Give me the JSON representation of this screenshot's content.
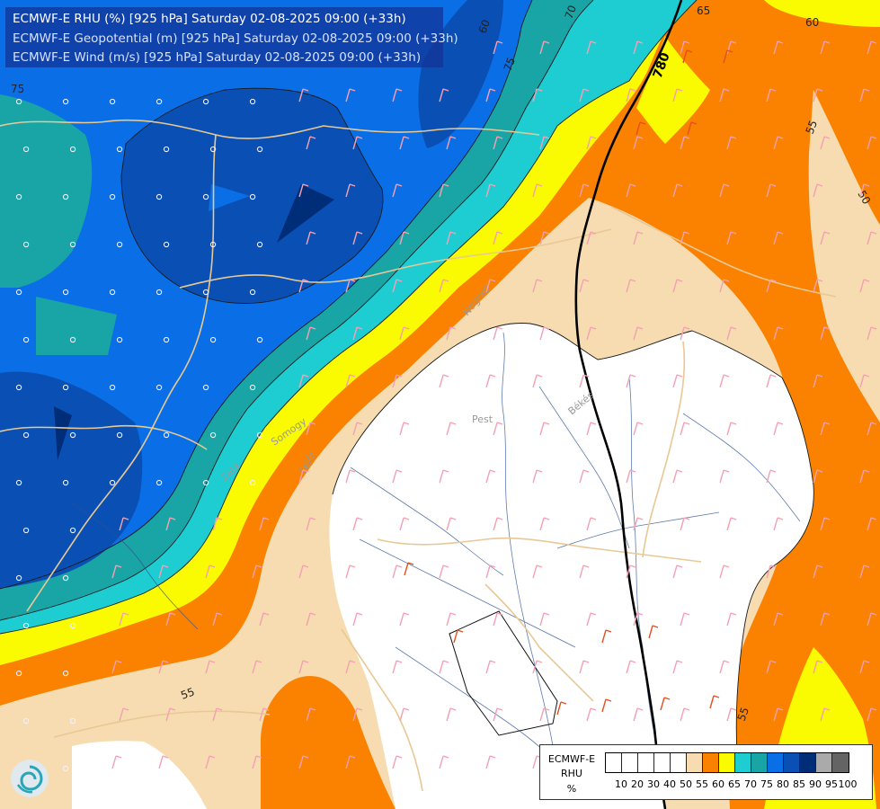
{
  "header": {
    "title_rhu": "ECMWF-E RHU (%) [925 hPa] Saturday 02-08-2025 09:00 (+33h)",
    "title_geo": "ECMWF-E Geopotential (m) [925 hPa] Saturday 02-08-2025 09:00 (+33h)",
    "title_wind": "ECMWF-E Wind (m/s) [925 hPa] Saturday 02-08-2025 09:00 (+33h)"
  },
  "place_labels": {
    "pest": "Pest",
    "bekes": "Békés",
    "fejer": "Fejér",
    "somogy": "Somogy",
    "zala": "Zala",
    "nograd": "Nógrád"
  },
  "contour_labels": {
    "geopotential_780": "780",
    "rh_75_left": "75",
    "rh_75_top": "75",
    "rh_70_top": "70",
    "rh_65_top": "65",
    "rh_60_top": "60",
    "rh_60_top_right": "60",
    "rh_55_right": "55",
    "rh_55_bottom_left": "55",
    "rh_55_bottom_right": "55",
    "rh_50_right": "50"
  },
  "legend": {
    "title_model": "ECMWF-E",
    "title_var": "RHU",
    "title_unit": "%",
    "ticks": [
      "10",
      "20",
      "30",
      "40",
      "50",
      "55",
      "60",
      "65",
      "70",
      "75",
      "80",
      "85",
      "90",
      "95",
      "100"
    ],
    "colors": [
      "#ffffff",
      "#ffffff",
      "#ffffff",
      "#ffffff",
      "#ffffff",
      "#f6dcb0",
      "#fa8200",
      "#fafa00",
      "#1ecdd2",
      "#19a5a5",
      "#0a6ee6",
      "#0a50b4",
      "#002d78",
      "#aaaaaa",
      "#646464"
    ]
  },
  "colors": {
    "rh_below_50": "#ffffff",
    "rh_50_55": "#f6dcb0",
    "rh_55_60": "#fa8200",
    "rh_60_65": "#fafa00",
    "rh_65_70": "#1ecdd2",
    "rh_70_75": "#19a5a5",
    "rh_75_80": "#0a6ee6",
    "rh_80_85": "#0a50b4",
    "rh_85_90": "#002d78",
    "country_border": "#e8c894",
    "river": "#2a5090",
    "wind_barb": "#f5a0b4",
    "wind_barb_strong": "#e25020"
  }
}
